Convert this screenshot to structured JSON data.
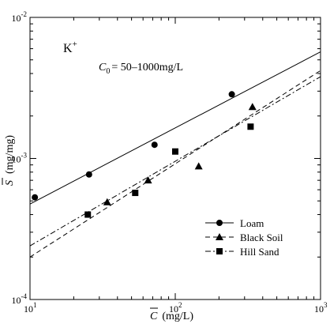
{
  "chart_data": {
    "type": "scatter",
    "title": "",
    "annotations": {
      "ion_base": "K",
      "ion_charge": "+",
      "c0_symbol": "C",
      "c0_sub": "0",
      "c0_text": "= 50–1000mg/L"
    },
    "xlabel": {
      "symbol": "C",
      "unit": "(mg/L)"
    },
    "ylabel": {
      "symbol": "S",
      "unit": "(mg/mg)"
    },
    "xscale": "log",
    "yscale": "log",
    "xlim": [
      10,
      1000
    ],
    "ylim": [
      0.0001,
      0.01
    ],
    "x_ticks": [
      {
        "base": "10",
        "exp": "1"
      },
      {
        "base": "10",
        "exp": "2"
      },
      {
        "base": "10",
        "exp": "3"
      }
    ],
    "y_ticks": [
      {
        "base": "10",
        "exp": "-4"
      },
      {
        "base": "10",
        "exp": "-3"
      },
      {
        "base": "10",
        "exp": "-2"
      }
    ],
    "grid": false,
    "legend_position": "bottom-right",
    "series": [
      {
        "name": "Loam",
        "marker": "circle",
        "line_style": "solid",
        "points": [
          [
            10.8,
            0.00053
          ],
          [
            25.5,
            0.00077
          ],
          [
            72,
            0.00125
          ],
          [
            245,
            0.00285
          ]
        ],
        "fit": [
          [
            10,
            0.000475
          ],
          [
            1000,
            0.0057
          ]
        ]
      },
      {
        "name": "Black Soil",
        "marker": "triangle",
        "line_style": "dashed",
        "points": [
          [
            34,
            0.00049
          ],
          [
            65,
            0.0007
          ],
          [
            145,
            0.00088
          ],
          [
            340,
            0.00232
          ]
        ],
        "fit": [
          [
            10,
            0.0002
          ],
          [
            1000,
            0.0042
          ]
        ]
      },
      {
        "name": "Hill Sand",
        "marker": "square",
        "line_style": "dashdot",
        "points": [
          [
            25,
            0.0004
          ],
          [
            53,
            0.00057
          ],
          [
            100,
            0.00112
          ],
          [
            330,
            0.00168
          ]
        ],
        "fit": [
          [
            10,
            0.00024
          ],
          [
            1000,
            0.0038
          ]
        ]
      }
    ]
  }
}
